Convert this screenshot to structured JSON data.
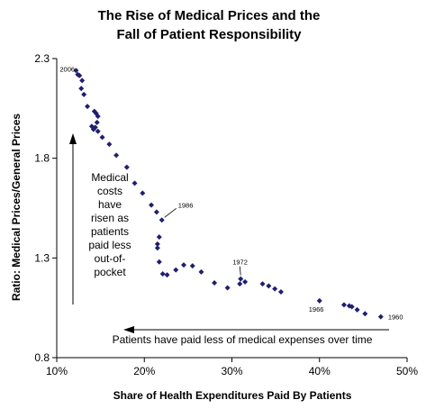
{
  "chart_data": {
    "type": "scatter",
    "title": [
      "The Rise of Medical Prices and the",
      "Fall of Patient Responsibility"
    ],
    "xlabel": "Share of Health Expenditures Paid By Patients",
    "ylabel": "Ratio: Medical Prices/General Prices",
    "xlim": [
      0.1,
      0.5
    ],
    "ylim": [
      0.8,
      2.3
    ],
    "x_ticks": [
      {
        "value": 0.1,
        "label": "10%"
      },
      {
        "value": 0.2,
        "label": "20%"
      },
      {
        "value": 0.3,
        "label": "30%"
      },
      {
        "value": 0.4,
        "label": "40%"
      },
      {
        "value": 0.5,
        "label": "50%"
      }
    ],
    "y_ticks": [
      {
        "value": 0.8,
        "label": "0.8"
      },
      {
        "value": 1.3,
        "label": "1.3"
      },
      {
        "value": 1.8,
        "label": "1.8"
      },
      {
        "value": 2.3,
        "label": "2.3"
      }
    ],
    "grid": false,
    "legend": "none",
    "marker_color": "#1f1f6e",
    "points": [
      {
        "x": 0.47,
        "y": 1.005
      },
      {
        "x": 0.452,
        "y": 1.02
      },
      {
        "x": 0.443,
        "y": 1.04
      },
      {
        "x": 0.437,
        "y": 1.055
      },
      {
        "x": 0.434,
        "y": 1.06
      },
      {
        "x": 0.428,
        "y": 1.065
      },
      {
        "x": 0.4,
        "y": 1.085
      },
      {
        "x": 0.356,
        "y": 1.13
      },
      {
        "x": 0.349,
        "y": 1.145
      },
      {
        "x": 0.342,
        "y": 1.16
      },
      {
        "x": 0.335,
        "y": 1.17
      },
      {
        "x": 0.315,
        "y": 1.18
      },
      {
        "x": 0.31,
        "y": 1.195
      },
      {
        "x": 0.309,
        "y": 1.17
      },
      {
        "x": 0.295,
        "y": 1.15
      },
      {
        "x": 0.28,
        "y": 1.175
      },
      {
        "x": 0.265,
        "y": 1.23
      },
      {
        "x": 0.255,
        "y": 1.26
      },
      {
        "x": 0.245,
        "y": 1.265
      },
      {
        "x": 0.236,
        "y": 1.24
      },
      {
        "x": 0.226,
        "y": 1.215
      },
      {
        "x": 0.221,
        "y": 1.22
      },
      {
        "x": 0.217,
        "y": 1.28
      },
      {
        "x": 0.215,
        "y": 1.35
      },
      {
        "x": 0.215,
        "y": 1.37
      },
      {
        "x": 0.217,
        "y": 1.405
      },
      {
        "x": 0.22,
        "y": 1.49
      },
      {
        "x": 0.214,
        "y": 1.53
      },
      {
        "x": 0.208,
        "y": 1.565
      },
      {
        "x": 0.198,
        "y": 1.625
      },
      {
        "x": 0.189,
        "y": 1.675
      },
      {
        "x": 0.18,
        "y": 1.755
      },
      {
        "x": 0.168,
        "y": 1.815
      },
      {
        "x": 0.16,
        "y": 1.87
      },
      {
        "x": 0.152,
        "y": 1.905
      },
      {
        "x": 0.147,
        "y": 1.935
      },
      {
        "x": 0.144,
        "y": 1.955
      },
      {
        "x": 0.142,
        "y": 1.945
      },
      {
        "x": 0.14,
        "y": 1.96
      },
      {
        "x": 0.146,
        "y": 1.98
      },
      {
        "x": 0.147,
        "y": 2.01
      },
      {
        "x": 0.145,
        "y": 2.025
      },
      {
        "x": 0.143,
        "y": 2.035
      },
      {
        "x": 0.135,
        "y": 2.06
      },
      {
        "x": 0.131,
        "y": 2.12
      },
      {
        "x": 0.128,
        "y": 2.15
      },
      {
        "x": 0.129,
        "y": 2.19
      },
      {
        "x": 0.126,
        "y": 2.215
      },
      {
        "x": 0.124,
        "y": 2.22
      },
      {
        "x": 0.122,
        "y": 2.24
      }
    ],
    "point_labels": [
      {
        "text": "2006",
        "x": 0.122,
        "y": 2.24
      },
      {
        "text": "1986",
        "x": 0.22,
        "y": 1.49
      },
      {
        "text": "1972",
        "x": 0.31,
        "y": 1.195
      },
      {
        "text": "1966",
        "x": 0.4,
        "y": 1.085
      },
      {
        "text": "1960",
        "x": 0.47,
        "y": 1.005
      }
    ],
    "annotations": {
      "vertical_note": [
        "Medical",
        "costs",
        "have",
        "risen as",
        "patients",
        "paid less",
        "out-of-",
        "pocket"
      ],
      "horizontal_note": "Patients have paid less of medical expenses over time"
    }
  }
}
